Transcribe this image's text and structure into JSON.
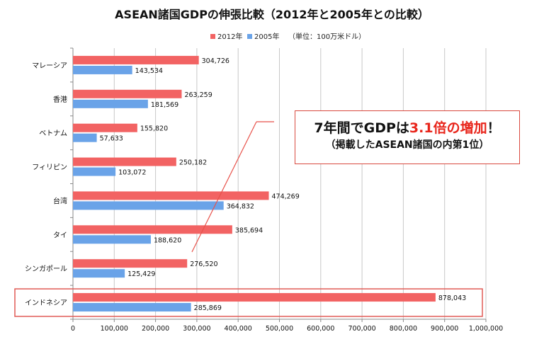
{
  "chart_data": {
    "type": "bar",
    "orientation": "horizontal",
    "title": "ASEAN諸国GDPの伸張比較（2012年と2005年との比較）",
    "unit_note": "（単位：100万米ドル）",
    "categories": [
      "マレーシア",
      "香港",
      "ベトナム",
      "フィリピン",
      "台湾",
      "タイ",
      "シンガポール",
      "インドネシア"
    ],
    "series": [
      {
        "name": "2012年",
        "color": "#f26363",
        "values": [
          304726,
          263259,
          155820,
          250182,
          474269,
          385694,
          276520,
          878043
        ]
      },
      {
        "name": "2005年",
        "color": "#6aa3e8",
        "values": [
          143534,
          181569,
          57633,
          103072,
          364832,
          188620,
          125429,
          285869
        ]
      }
    ],
    "data_labels": [
      [
        "304,726",
        "263,259",
        "155,820",
        "250,182",
        "474,269",
        "385,694",
        "276,520",
        "878,043"
      ],
      [
        "143,534",
        "181,569",
        "57,633",
        "103,072",
        "364,832",
        "188,620",
        "125,429",
        "285,869"
      ]
    ],
    "x_ticks": [
      0,
      100000,
      200000,
      300000,
      400000,
      500000,
      600000,
      700000,
      800000,
      900000,
      1000000
    ],
    "x_tick_labels": [
      "0",
      "100,000",
      "200,000",
      "300,000",
      "400,000",
      "500,000",
      "600,000",
      "700,000",
      "800,000",
      "900,000",
      "1,000,000"
    ],
    "xlim": [
      0,
      1000000
    ],
    "grid": true,
    "legend_position": "top-right",
    "highlight_category": "インドネシア",
    "highlight_color": "#e05a55"
  },
  "callout": {
    "line1_prefix": "7年間でGDPは",
    "line1_highlight": "3.1倍の増加",
    "line1_suffix": "！",
    "line2": "（掲載したASEAN諸国の内第1位）",
    "highlight_color": "#e8251b",
    "border_color": "#d94a3f"
  }
}
